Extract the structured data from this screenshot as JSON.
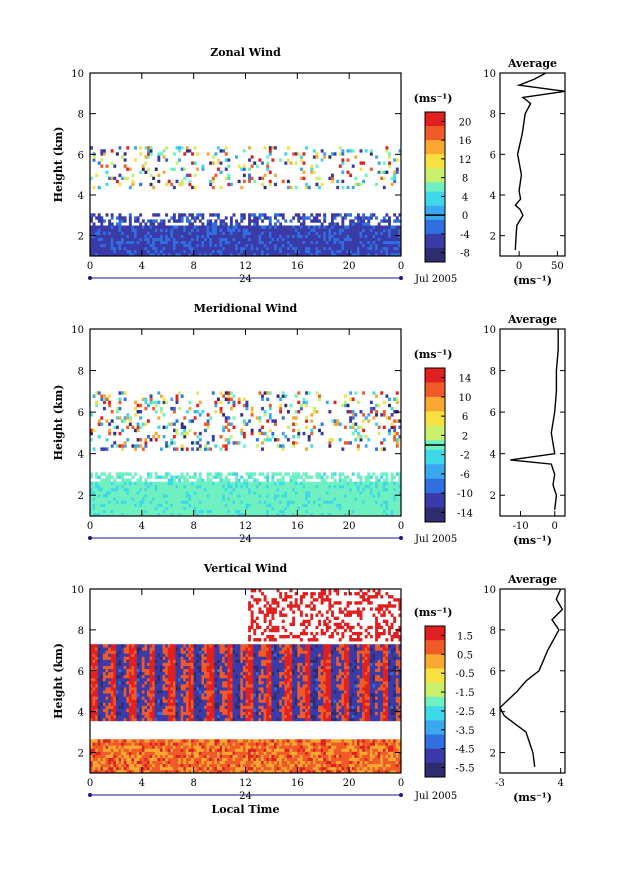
{
  "chart_data": [
    {
      "type": "heatmap",
      "title": "Zonal Wind",
      "ylabel": "Height (km)",
      "xlabel": "",
      "x_ticks": [
        "0",
        "4",
        "8",
        "12",
        "16",
        "20",
        "0"
      ],
      "y_ticks": [
        "2",
        "4",
        "6",
        "8",
        "10"
      ],
      "xlim": [
        0,
        24
      ],
      "ylim": [
        1,
        10
      ],
      "date_label": "24",
      "month_label": "Jul 2005",
      "colorbar": {
        "unit": "(ms⁻¹)",
        "ticks": [
          "20",
          "16",
          "12",
          "8",
          "4",
          "0",
          "-4",
          "-8"
        ],
        "range": [
          -10,
          22
        ],
        "zero_line": 0
      },
      "profile": {
        "title": "Average",
        "x_ticks": [
          "0",
          "50"
        ],
        "xlim": [
          -25,
          60
        ],
        "unit": "(ms⁻¹)",
        "heights": [
          1.3,
          2,
          2.5,
          3,
          3.3,
          3.5,
          3.8,
          4.2,
          5,
          6,
          7,
          8,
          8.5,
          8.8,
          9.1,
          9.4,
          9.7,
          10
        ],
        "values": [
          -5,
          -4,
          -3,
          5,
          1,
          -5,
          2,
          0,
          3,
          -2,
          4,
          8,
          15,
          5,
          60,
          0,
          20,
          35
        ]
      },
      "values_summary": "Low-level winds 1-3 km mostly -2 to -6 m/s; scattered 4-6 km convective cells ranging -8 to 20 m/s"
    },
    {
      "type": "heatmap",
      "title": "Meridional Wind",
      "ylabel": "Height (km)",
      "xlabel": "",
      "x_ticks": [
        "0",
        "4",
        "8",
        "12",
        "16",
        "20",
        "0"
      ],
      "y_ticks": [
        "2",
        "4",
        "6",
        "8",
        "10"
      ],
      "xlim": [
        0,
        24
      ],
      "ylim": [
        1,
        10
      ],
      "date_label": "24",
      "month_label": "Jul 2005",
      "colorbar": {
        "unit": "(ms⁻¹)",
        "ticks": [
          "14",
          "10",
          "6",
          "2",
          "-2",
          "-6",
          "-10",
          "-14"
        ],
        "range": [
          -16,
          16
        ],
        "zero_line": 0
      },
      "profile": {
        "title": "Average",
        "x_ticks": [
          "-10",
          "0"
        ],
        "xlim": [
          -16,
          3
        ],
        "unit": "(ms⁻¹)",
        "heights": [
          1.3,
          2,
          2.5,
          3,
          3.5,
          3.7,
          4,
          5,
          6,
          7,
          8,
          9,
          10
        ],
        "values": [
          0,
          0.5,
          -0.5,
          0,
          -1,
          -13,
          0,
          -1,
          0,
          0.5,
          0.5,
          1,
          1
        ]
      },
      "values_summary": "Low-level winds near -2 to 2 m/s; mid-level 4-7 km mixed values"
    },
    {
      "type": "heatmap",
      "title": "Vertical Wind",
      "ylabel": "Height (km)",
      "xlabel": "Local Time",
      "x_ticks": [
        "0",
        "4",
        "8",
        "12",
        "16",
        "20",
        "0"
      ],
      "y_ticks": [
        "2",
        "4",
        "6",
        "8",
        "10"
      ],
      "xlim": [
        0,
        24
      ],
      "ylim": [
        1,
        10
      ],
      "date_label": "24",
      "month_label": "Jul 2005",
      "colorbar": {
        "unit": "(ms⁻¹)",
        "ticks": [
          "1.5",
          "0.5",
          "-0.5",
          "-1.5",
          "-2.5",
          "-3.5",
          "-4.5",
          "-5.5"
        ],
        "range": [
          -6,
          2
        ]
      },
      "profile": {
        "title": "Average",
        "x_ticks": [
          "-3",
          "4"
        ],
        "xlim": [
          -3,
          4.5
        ],
        "unit": "(ms⁻¹)",
        "heights": [
          1.3,
          2,
          3,
          3.8,
          4.2,
          5,
          5.5,
          6,
          7,
          8,
          8.5,
          9,
          9.5,
          10
        ],
        "values": [
          1,
          0.8,
          0,
          -2.5,
          -3,
          -1,
          0,
          1.5,
          2.5,
          3.8,
          3,
          4.2,
          3.5,
          4
        ]
      },
      "values_summary": "Low levels 1-2.5 km near 0 to 1 m/s; 4-7 km alternating strong up/down drafts; upper levels mostly positive"
    }
  ]
}
